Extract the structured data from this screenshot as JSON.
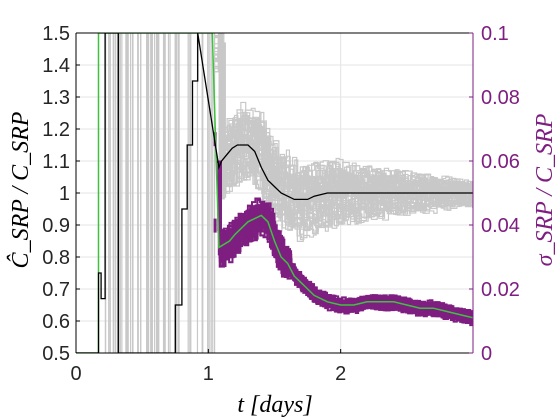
{
  "chart_data": {
    "type": "line",
    "xlabel": "t [days]",
    "ylabel_left": "Ĉ_SRP / C_SRP",
    "ylabel_right": "σ_SRP / C_SRP",
    "xlim": [
      0,
      3
    ],
    "ylim_left": [
      0.5,
      1.5
    ],
    "ylim_right": [
      0,
      0.1
    ],
    "x_ticks": [
      "0",
      "1",
      "2"
    ],
    "x_tick_values": [
      0,
      1,
      2
    ],
    "y_left_ticks": [
      "0.5",
      "0.6",
      "0.7",
      "0.8",
      "0.9",
      "1",
      "1.1",
      "1.2",
      "1.3",
      "1.4",
      "1.5"
    ],
    "y_left_tick_values": [
      0.5,
      0.6,
      0.7,
      0.8,
      0.9,
      1.0,
      1.1,
      1.2,
      1.3,
      1.4,
      1.5
    ],
    "y_right_ticks": [
      "0",
      "0.02",
      "0.04",
      "0.06",
      "0.08",
      "0.1"
    ],
    "y_right_tick_values": [
      0,
      0.02,
      0.04,
      0.06,
      0.08,
      0.1
    ],
    "grid": true,
    "colors": {
      "left_axis": "#000000",
      "right_axis": "#7e1e80",
      "estimate_mean": "#000000",
      "monte_carlo": "#c8c8c8",
      "sigma_band": "#7e1e80",
      "sigma_mean": "#3ec23e",
      "grid": "#e4e4e4"
    },
    "series": [
      {
        "axis": "left",
        "x": [
          0.0,
          0.17,
          0.17,
          0.19,
          0.19,
          0.22,
          0.22,
          0.32,
          0.32,
          0.75,
          0.75,
          0.8,
          0.8,
          0.84,
          0.84,
          0.88,
          0.88,
          0.92,
          0.92,
          1.08,
          1.1,
          1.14,
          1.18,
          1.22,
          1.26,
          1.3,
          1.35,
          1.4,
          1.45,
          1.5,
          1.55,
          1.6,
          1.65,
          1.7,
          1.75,
          1.8,
          1.9,
          2.0,
          2.1,
          2.2,
          2.3,
          2.4,
          2.5,
          2.6,
          2.7,
          2.8,
          2.9,
          3.0
        ],
        "y": [
          0.5,
          0.5,
          0.75,
          0.75,
          0.67,
          0.67,
          1.5,
          1.5,
          0.5,
          0.5,
          0.65,
          0.65,
          0.95,
          0.95,
          1.15,
          1.15,
          1.35,
          1.35,
          1.5,
          1.08,
          1.1,
          1.12,
          1.14,
          1.15,
          1.15,
          1.15,
          1.13,
          1.08,
          1.04,
          1.02,
          1.0,
          0.99,
          0.98,
          0.98,
          0.98,
          0.99,
          1.0,
          1.0,
          1.0,
          1.0,
          1.0,
          1.0,
          1.0,
          1.0,
          1.0,
          1.0,
          1.0,
          1.0
        ]
      },
      {
        "axis": "right",
        "x": [
          0.0,
          0.17,
          0.17,
          1.03,
          1.03,
          1.08,
          1.12,
          1.16,
          1.2,
          1.25,
          1.3,
          1.35,
          1.4,
          1.45,
          1.5,
          1.55,
          1.6,
          1.65,
          1.7,
          1.75,
          1.8,
          1.9,
          2.0,
          2.1,
          2.2,
          2.3,
          2.4,
          2.5,
          2.6,
          2.7,
          2.8,
          2.9,
          3.0
        ],
        "y": [
          0.0,
          0.0,
          0.1,
          0.1,
          0.1,
          0.033,
          0.034,
          0.035,
          0.037,
          0.039,
          0.041,
          0.042,
          0.043,
          0.041,
          0.035,
          0.03,
          0.028,
          0.024,
          0.022,
          0.02,
          0.018,
          0.016,
          0.015,
          0.015,
          0.016,
          0.016,
          0.016,
          0.015,
          0.014,
          0.014,
          0.013,
          0.012,
          0.011
        ]
      }
    ]
  }
}
